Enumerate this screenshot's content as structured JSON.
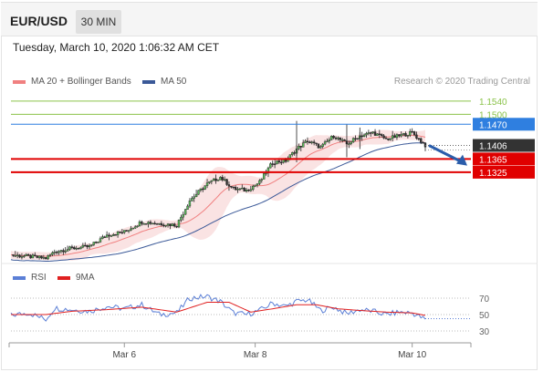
{
  "header": {
    "symbol": "EUR/USD",
    "timeframe": "30 MIN",
    "datetime": "Tuesday, March 10, 2020 1:06:32 AM CET"
  },
  "legend": {
    "ma20_label": "MA 20 + Bollinger Bands",
    "ma20_color": "#f08080",
    "ma50_label": "MA 50",
    "ma50_color": "#3b5998",
    "copyright": "Research © 2020 Trading Central"
  },
  "rsi_legend": {
    "rsi_label": "RSI",
    "rsi_color": "#5b7fd6",
    "ma_label": "9MA",
    "ma_color": "#e02020"
  },
  "chart_data": {
    "type": "line",
    "subtype": "candlestick",
    "price_range": [
      1.106,
      1.157
    ],
    "levels": [
      {
        "value": 1.154,
        "label": "1.1540",
        "color": "#8bc34a",
        "style": "resistance"
      },
      {
        "value": 1.15,
        "label": "1.1500",
        "color": "#8bc34a",
        "style": "resistance"
      },
      {
        "value": 1.147,
        "label": "1.1470",
        "color": "#2f7fe0",
        "style": "pivot"
      },
      {
        "value": 1.1365,
        "label": "1.1365",
        "color": "#e00000",
        "style": "support"
      },
      {
        "value": 1.1325,
        "label": "1.1325",
        "color": "#e00000",
        "style": "support"
      }
    ],
    "last_price": {
      "value": 1.1406,
      "label": "1.1406",
      "color": "#333333"
    },
    "close_path": [
      {
        "i": 0,
        "v": 1.1075
      },
      {
        "i": 8,
        "v": 1.107
      },
      {
        "i": 16,
        "v": 1.1065
      },
      {
        "i": 20,
        "v": 1.1085
      },
      {
        "i": 28,
        "v": 1.1095
      },
      {
        "i": 36,
        "v": 1.11
      },
      {
        "i": 44,
        "v": 1.1135
      },
      {
        "i": 52,
        "v": 1.1145
      },
      {
        "i": 60,
        "v": 1.1175
      },
      {
        "i": 68,
        "v": 1.117
      },
      {
        "i": 76,
        "v": 1.1165
      },
      {
        "i": 82,
        "v": 1.124
      },
      {
        "i": 90,
        "v": 1.129
      },
      {
        "i": 96,
        "v": 1.131
      },
      {
        "i": 102,
        "v": 1.1275
      },
      {
        "i": 108,
        "v": 1.127
      },
      {
        "i": 114,
        "v": 1.1295
      },
      {
        "i": 120,
        "v": 1.1355
      },
      {
        "i": 126,
        "v": 1.136
      },
      {
        "i": 131,
        "v": 1.1395
      },
      {
        "i": 136,
        "v": 1.142
      },
      {
        "i": 142,
        "v": 1.14
      },
      {
        "i": 148,
        "v": 1.1435
      },
      {
        "i": 154,
        "v": 1.141
      },
      {
        "i": 160,
        "v": 1.1435
      },
      {
        "i": 166,
        "v": 1.1445
      },
      {
        "i": 172,
        "v": 1.1425
      },
      {
        "i": 178,
        "v": 1.1435
      },
      {
        "i": 184,
        "v": 1.1445
      },
      {
        "i": 190,
        "v": 1.1406
      }
    ],
    "forecast_arrow": {
      "from": 1.1406,
      "to": 1.1345
    },
    "x_ticks": [
      {
        "i": 52,
        "label": "Mar 6"
      },
      {
        "i": 112,
        "label": "Mar 8"
      },
      {
        "i": 184,
        "label": "Mar 10"
      }
    ],
    "rsi": {
      "range": [
        20,
        80
      ],
      "ticks": [
        70,
        50,
        30
      ],
      "rsi_path": [
        {
          "i": 0,
          "v": 49
        },
        {
          "i": 8,
          "v": 52
        },
        {
          "i": 16,
          "v": 44
        },
        {
          "i": 20,
          "v": 58
        },
        {
          "i": 28,
          "v": 56
        },
        {
          "i": 36,
          "v": 54
        },
        {
          "i": 44,
          "v": 60
        },
        {
          "i": 52,
          "v": 57
        },
        {
          "i": 60,
          "v": 62
        },
        {
          "i": 68,
          "v": 50
        },
        {
          "i": 76,
          "v": 52
        },
        {
          "i": 82,
          "v": 70
        },
        {
          "i": 90,
          "v": 72
        },
        {
          "i": 96,
          "v": 66
        },
        {
          "i": 102,
          "v": 52
        },
        {
          "i": 108,
          "v": 50
        },
        {
          "i": 114,
          "v": 55
        },
        {
          "i": 120,
          "v": 64
        },
        {
          "i": 126,
          "v": 60
        },
        {
          "i": 131,
          "v": 66
        },
        {
          "i": 136,
          "v": 68
        },
        {
          "i": 142,
          "v": 55
        },
        {
          "i": 148,
          "v": 59
        },
        {
          "i": 154,
          "v": 51
        },
        {
          "i": 160,
          "v": 56
        },
        {
          "i": 166,
          "v": 54
        },
        {
          "i": 172,
          "v": 50
        },
        {
          "i": 178,
          "v": 53
        },
        {
          "i": 184,
          "v": 52
        },
        {
          "i": 190,
          "v": 44
        }
      ],
      "ma_path": [
        {
          "i": 0,
          "v": 50
        },
        {
          "i": 16,
          "v": 50
        },
        {
          "i": 28,
          "v": 54
        },
        {
          "i": 44,
          "v": 56
        },
        {
          "i": 60,
          "v": 59
        },
        {
          "i": 76,
          "v": 53
        },
        {
          "i": 90,
          "v": 65
        },
        {
          "i": 100,
          "v": 65
        },
        {
          "i": 110,
          "v": 53
        },
        {
          "i": 120,
          "v": 57
        },
        {
          "i": 131,
          "v": 62
        },
        {
          "i": 140,
          "v": 62
        },
        {
          "i": 150,
          "v": 57
        },
        {
          "i": 160,
          "v": 55
        },
        {
          "i": 172,
          "v": 53
        },
        {
          "i": 184,
          "v": 52
        },
        {
          "i": 190,
          "v": 49
        }
      ],
      "projection_value": 45
    }
  }
}
